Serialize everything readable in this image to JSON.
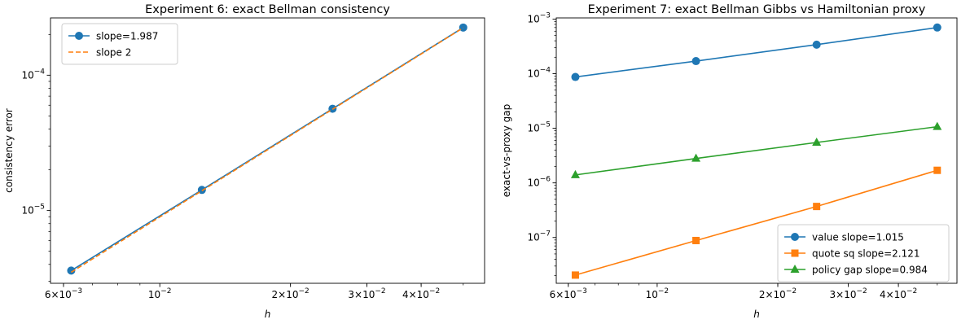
{
  "chart_data": [
    {
      "type": "line",
      "title": "Experiment 6: exact Bellman consistency",
      "xlabel": "h",
      "ylabel": "consistency error",
      "xscale": "log",
      "yscale": "log",
      "xlim": [
        0.0056,
        0.056
      ],
      "ylim": [
        2.9e-06,
        0.000265
      ],
      "x_ticks": [
        {
          "value": 0.006,
          "base": "6×10",
          "exp": "−3"
        },
        {
          "value": 0.01,
          "base": "10",
          "exp": "−2"
        },
        {
          "value": 0.02,
          "base": "2×10",
          "exp": "−2"
        },
        {
          "value": 0.03,
          "base": "3×10",
          "exp": "−2"
        },
        {
          "value": 0.04,
          "base": "4×10",
          "exp": "−2"
        }
      ],
      "y_ticks": [
        {
          "value": 1e-05,
          "base": "10",
          "exp": "−5"
        },
        {
          "value": 0.0001,
          "base": "10",
          "exp": "−4"
        }
      ],
      "grid": false,
      "legend_position": "top-left",
      "series": [
        {
          "name": "slope=1.987",
          "color": "#1f77b4",
          "style": "solid",
          "marker": "circle",
          "x": [
            0.00625,
            0.0125,
            0.025,
            0.05
          ],
          "y": [
            3.6e-06,
            1.42e-05,
            5.65e-05,
            0.000225
          ]
        },
        {
          "name": "slope 2",
          "color": "#ff7f0e",
          "style": "dashed",
          "marker": "none",
          "x": [
            0.00625,
            0.05
          ],
          "y": [
            3.5e-06,
            0.000224
          ]
        }
      ]
    },
    {
      "type": "line",
      "title": "Experiment 7: exact Bellman Gibbs vs Hamiltonian proxy",
      "xlabel": "h",
      "ylabel": "exact-vs-proxy gap",
      "xscale": "log",
      "yscale": "log",
      "xlim": [
        0.0056,
        0.056
      ],
      "ylim": [
        1.45e-08,
        0.00105
      ],
      "x_ticks": [
        {
          "value": 0.006,
          "base": "6×10",
          "exp": "−3"
        },
        {
          "value": 0.01,
          "base": "10",
          "exp": "−2"
        },
        {
          "value": 0.02,
          "base": "2×10",
          "exp": "−2"
        },
        {
          "value": 0.03,
          "base": "3×10",
          "exp": "−2"
        },
        {
          "value": 0.04,
          "base": "4×10",
          "exp": "−2"
        }
      ],
      "y_ticks": [
        {
          "value": 1e-07,
          "base": "10",
          "exp": "−7"
        },
        {
          "value": 1e-06,
          "base": "10",
          "exp": "−6"
        },
        {
          "value": 1e-05,
          "base": "10",
          "exp": "−5"
        },
        {
          "value": 0.0001,
          "base": "10",
          "exp": "−4"
        },
        {
          "value": 0.001,
          "base": "10",
          "exp": "−3"
        }
      ],
      "grid": false,
      "legend_position": "bottom-right",
      "series": [
        {
          "name": "value slope=1.015",
          "color": "#1f77b4",
          "style": "solid",
          "marker": "circle",
          "x": [
            0.00625,
            0.0125,
            0.025,
            0.05
          ],
          "y": [
            8.7e-05,
            0.00017,
            0.00034,
            0.0007
          ]
        },
        {
          "name": "quote sq slope=2.121",
          "color": "#ff7f0e",
          "style": "solid",
          "marker": "square",
          "x": [
            0.00625,
            0.0125,
            0.025,
            0.05
          ],
          "y": [
            2.05e-08,
            8.8e-08,
            3.7e-07,
            1.7e-06
          ]
        },
        {
          "name": "policy gap slope=0.984",
          "color": "#2ca02c",
          "style": "solid",
          "marker": "triangle",
          "x": [
            0.00625,
            0.0125,
            0.025,
            0.05
          ],
          "y": [
            1.4e-06,
            2.8e-06,
            5.5e-06,
            1.07e-05
          ]
        }
      ]
    }
  ]
}
